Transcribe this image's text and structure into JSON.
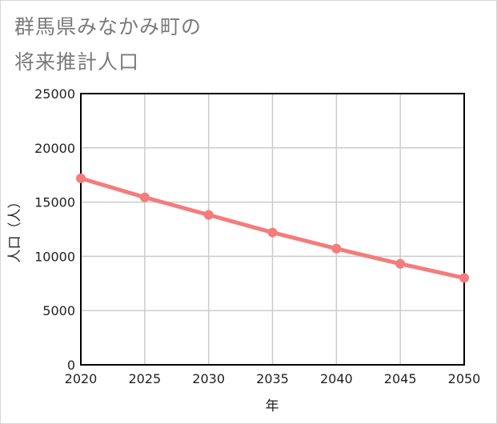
{
  "title": {
    "line1": "群馬県みなかみ町の",
    "line2": "将来推計人口"
  },
  "colors": {
    "series": "#f47c7c",
    "grid": "#cccccc",
    "title": "#7a7a7a",
    "axis": "#000000"
  },
  "chart_data": {
    "type": "line",
    "title": "群馬県みなかみ町の将来推計人口",
    "xlabel": "年",
    "ylabel": "人口（人）",
    "x": [
      2020,
      2025,
      2030,
      2035,
      2040,
      2045,
      2050
    ],
    "series": [
      {
        "name": "人口",
        "values": [
          17190,
          15440,
          13820,
          12200,
          10710,
          9310,
          8010
        ]
      }
    ],
    "xlim": [
      2020,
      2050
    ],
    "ylim": [
      0,
      25000
    ],
    "yticks": [
      0,
      5000,
      10000,
      15000,
      20000,
      25000
    ],
    "xticks": [
      2020,
      2025,
      2030,
      2035,
      2040,
      2045,
      2050
    ],
    "grid": true
  }
}
